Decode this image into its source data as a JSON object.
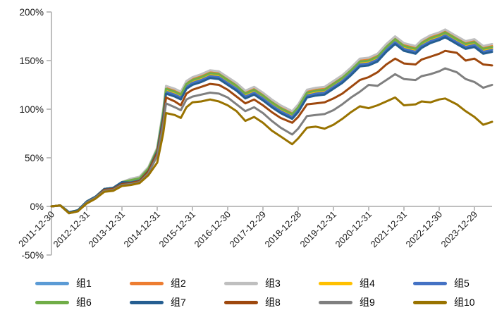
{
  "chart": {
    "title": "",
    "axis_color": "#BFBFBF",
    "text_color": "#1a1a1a"
  },
  "chart_data": {
    "type": "line",
    "title": "",
    "xlabel": "",
    "ylabel": "",
    "y_tick_format": "percent",
    "ylim": [
      -50,
      200
    ],
    "grid": false,
    "legend_position": "bottom",
    "y_ticks": [
      {
        "v": 200,
        "label": "200%"
      },
      {
        "v": 150,
        "label": "150%"
      },
      {
        "v": 100,
        "label": "100%"
      },
      {
        "v": 50,
        "label": "50%"
      },
      {
        "v": 0,
        "label": "0%"
      },
      {
        "v": -50,
        "label": "-50%"
      }
    ],
    "x_ticks": [
      {
        "t": 2012,
        "label": "2011-12-30"
      },
      {
        "t": 2013,
        "label": "2012-12-31"
      },
      {
        "t": 2014,
        "label": "2013-12-31"
      },
      {
        "t": 2015,
        "label": "2014-12-31"
      },
      {
        "t": 2016,
        "label": "2015-12-31"
      },
      {
        "t": 2017,
        "label": "2016-12-30"
      },
      {
        "t": 2018,
        "label": "2017-12-29"
      },
      {
        "t": 2019,
        "label": "2018-12-28"
      },
      {
        "t": 2020,
        "label": "2019-12-31"
      },
      {
        "t": 2021,
        "label": "2020-12-31"
      },
      {
        "t": 2022,
        "label": "2021-12-31"
      },
      {
        "t": 2023,
        "label": "2022-12-30"
      },
      {
        "t": 2024,
        "label": "2023-12-29"
      }
    ],
    "x": [
      2012.0,
      2012.25,
      2012.5,
      2012.75,
      2013.0,
      2013.25,
      2013.5,
      2013.75,
      2014.0,
      2014.25,
      2014.5,
      2014.75,
      2015.0,
      2015.17,
      2015.25,
      2015.5,
      2015.67,
      2015.83,
      2016.0,
      2016.25,
      2016.5,
      2016.75,
      2017.0,
      2017.25,
      2017.5,
      2017.75,
      2018.0,
      2018.25,
      2018.5,
      2018.83,
      2019.0,
      2019.25,
      2019.5,
      2019.75,
      2020.0,
      2020.25,
      2020.5,
      2020.75,
      2021.0,
      2021.25,
      2021.5,
      2021.75,
      2022.0,
      2022.33,
      2022.5,
      2022.75,
      2023.0,
      2023.17,
      2023.5,
      2023.75,
      2024.0,
      2024.25,
      2024.5
    ],
    "series": [
      {
        "name": "组1",
        "color": "#5B9BD5",
        "values": [
          0,
          1,
          -6,
          -4,
          5,
          10,
          18,
          19,
          25,
          26.5,
          28.5,
          38.5,
          58.5,
          96,
          120,
          117,
          114,
          125,
          129,
          132,
          136,
          135,
          129,
          123,
          115,
          119,
          113,
          106,
          100,
          94,
          101,
          116,
          118,
          119,
          125,
          131,
          139,
          148,
          149,
          153,
          163,
          171,
          164,
          161,
          167,
          172,
          175,
          178,
          171,
          166,
          168,
          161,
          163
        ]
      },
      {
        "name": "组2",
        "color": "#ED7D31",
        "values": [
          0,
          1,
          -6,
          -4,
          5,
          10,
          18,
          19,
          25,
          27.5,
          29.5,
          39.5,
          59.5,
          98,
          122,
          119,
          116,
          127,
          131,
          134,
          138,
          137,
          131,
          125,
          117,
          121,
          115,
          108,
          102,
          96,
          103,
          118,
          120,
          121,
          127,
          133,
          141,
          150,
          151,
          155,
          165,
          173,
          166,
          163,
          169,
          174,
          177,
          180,
          173,
          168,
          170,
          163,
          165
        ]
      },
      {
        "name": "组3",
        "color": "#BFBFBF",
        "values": [
          0,
          1,
          -6,
          -4,
          5,
          10,
          18,
          19,
          25,
          28.5,
          30.5,
          40.5,
          60.5,
          100,
          124,
          121,
          118,
          129,
          133,
          136,
          140,
          139,
          133,
          127,
          119,
          123,
          117,
          110,
          104,
          98,
          105,
          120,
          122,
          123,
          129,
          135,
          143,
          152,
          153,
          157,
          167,
          175,
          168,
          165,
          171,
          176,
          179,
          182,
          175,
          170,
          172,
          165,
          167
        ]
      },
      {
        "name": "组4",
        "color": "#FFC000",
        "values": [
          0,
          1,
          -6,
          -4,
          5,
          10,
          18,
          19,
          25,
          26,
          28,
          38,
          58,
          95,
          119,
          116,
          113,
          124,
          128,
          131,
          135,
          134,
          128,
          122,
          114,
          118,
          112,
          105,
          99,
          93,
          100,
          115,
          117,
          118,
          124,
          130,
          138,
          147,
          148,
          152,
          162,
          170,
          163,
          160,
          166,
          171,
          174,
          177,
          170,
          165,
          167,
          160,
          162
        ]
      },
      {
        "name": "组5",
        "color": "#4472C4",
        "values": [
          0,
          1,
          -6,
          -4,
          5,
          10,
          18,
          19,
          25,
          25.5,
          27.5,
          37.5,
          57.5,
          94,
          118,
          115,
          112,
          123,
          127,
          130,
          134,
          133,
          127,
          121,
          113,
          117,
          111,
          104,
          98,
          92,
          99,
          114,
          116,
          117,
          123,
          129,
          137,
          146,
          147,
          151,
          161,
          169,
          162,
          159,
          165,
          170,
          173,
          176,
          169,
          164,
          166,
          159,
          161
        ]
      },
      {
        "name": "组6",
        "color": "#70AD47",
        "values": [
          0,
          1,
          -6,
          -4,
          5,
          10,
          18,
          19,
          25,
          27,
          29,
          39,
          59,
          97,
          121,
          118,
          115,
          126,
          130,
          133,
          137,
          136,
          130,
          124,
          116,
          120,
          114,
          107,
          101,
          95,
          102,
          117,
          119,
          120,
          126,
          132,
          140,
          149,
          150,
          154,
          164,
          172,
          165,
          162,
          168,
          173,
          176,
          179,
          172,
          167,
          169,
          162,
          164
        ]
      },
      {
        "name": "组7",
        "color": "#255E91",
        "values": [
          0,
          1,
          -6,
          -4,
          5,
          10,
          18,
          19,
          25,
          24.5,
          26.5,
          36.5,
          56.5,
          92,
          116,
          113,
          110,
          121,
          125,
          128,
          132,
          131,
          125,
          119,
          111,
          115,
          109,
          102,
          96,
          90,
          97,
          112,
          114,
          115,
          121,
          127,
          135,
          144,
          145,
          149,
          159,
          167,
          160,
          157,
          163,
          168,
          171,
          174,
          167,
          162,
          164,
          157,
          159
        ]
      },
      {
        "name": "组8",
        "color": "#9E480E",
        "values": [
          0,
          1,
          -7,
          -5,
          4,
          9,
          17,
          18,
          23,
          24,
          26,
          36,
          55,
          88,
          112,
          108,
          104,
          116,
          120,
          123,
          126,
          125,
          120,
          113,
          106,
          110,
          104,
          97,
          91,
          86,
          92,
          105,
          106,
          107,
          111,
          116,
          123,
          130,
          133,
          138,
          146,
          152,
          147,
          146,
          151,
          154,
          157,
          160,
          158,
          150,
          152,
          146,
          145
        ]
      },
      {
        "name": "组9",
        "color": "#7F7F7F",
        "values": [
          0,
          1,
          -7,
          -5,
          4,
          9,
          16,
          17,
          22,
          23,
          25,
          34,
          52,
          84,
          106,
          102,
          99,
          110,
          113,
          115,
          117,
          116,
          112,
          105,
          98,
          102,
          96,
          88,
          81,
          74,
          80,
          93,
          94,
          95,
          99,
          105,
          112,
          118,
          125,
          124,
          130,
          136,
          131,
          130,
          134,
          136,
          139,
          142,
          138,
          131,
          128,
          122,
          125
        ]
      },
      {
        "name": "组10",
        "color": "#997300",
        "values": [
          0,
          1,
          -7,
          -5,
          3,
          8,
          15,
          16,
          21,
          22,
          24,
          32,
          45,
          75,
          96,
          94,
          91,
          102,
          107,
          108,
          110,
          108,
          104,
          98,
          88,
          92,
          86,
          78,
          72,
          64,
          70,
          81,
          82,
          80,
          84,
          90,
          97,
          103,
          101,
          104,
          108,
          112,
          104,
          105,
          108,
          107,
          110,
          111,
          105,
          98,
          92,
          84,
          87
        ]
      }
    ]
  }
}
